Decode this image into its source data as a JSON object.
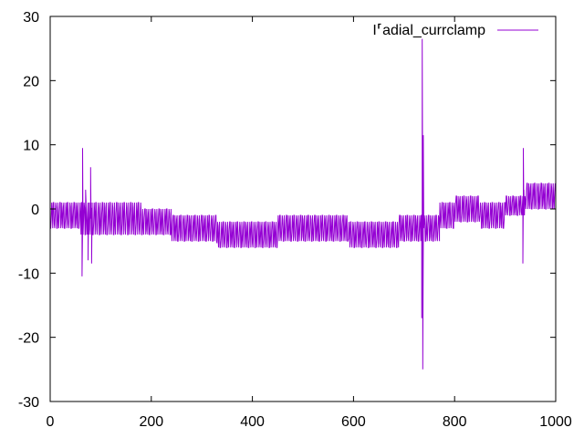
{
  "chart_data": {
    "type": "line",
    "title": "",
    "xlabel": "",
    "ylabel": "",
    "xlim": [
      0,
      1000
    ],
    "ylim": [
      -30,
      30
    ],
    "xticks": [
      0,
      200,
      400,
      600,
      800,
      1000
    ],
    "yticks": [
      -30,
      -20,
      -10,
      0,
      10,
      20,
      30
    ],
    "xtick_labels": [
      "0",
      "200",
      "400",
      "600",
      "800",
      "1000"
    ],
    "ytick_labels": [
      "-30",
      "-20",
      "-10",
      "0",
      "10",
      "20",
      "30"
    ],
    "grid": false,
    "legend_position": "top-right",
    "series": [
      {
        "name": "I⸢adial_currclamp",
        "color": "#9400d3",
        "segments": [
          {
            "x0": 0,
            "x1": 60,
            "low": -3,
            "high": 1
          },
          {
            "x0": 60,
            "x1": 100,
            "low": -4,
            "high": 1
          },
          {
            "x0": 100,
            "x1": 180,
            "low": -4,
            "high": 1
          },
          {
            "x0": 180,
            "x1": 240,
            "low": -4,
            "high": 0
          },
          {
            "x0": 240,
            "x1": 330,
            "low": -5,
            "high": -1
          },
          {
            "x0": 330,
            "x1": 450,
            "low": -6,
            "high": -2
          },
          {
            "x0": 450,
            "x1": 590,
            "low": -5,
            "high": -1
          },
          {
            "x0": 590,
            "x1": 690,
            "low": -6,
            "high": -2
          },
          {
            "x0": 690,
            "x1": 735,
            "low": -5,
            "high": -1
          },
          {
            "x0": 735,
            "x1": 770,
            "low": -5,
            "high": -1
          },
          {
            "x0": 770,
            "x1": 800,
            "low": -3,
            "high": 1
          },
          {
            "x0": 800,
            "x1": 850,
            "low": -2,
            "high": 2
          },
          {
            "x0": 850,
            "x1": 900,
            "low": -3,
            "high": 1
          },
          {
            "x0": 900,
            "x1": 940,
            "low": -1,
            "high": 2
          },
          {
            "x0": 940,
            "x1": 1000,
            "low": 0,
            "high": 4
          }
        ],
        "spikes": [
          {
            "x": 63,
            "y": -10.5
          },
          {
            "x": 64,
            "y": 9.5
          },
          {
            "x": 70,
            "y": 3
          },
          {
            "x": 75,
            "y": -8
          },
          {
            "x": 80,
            "y": 6.5
          },
          {
            "x": 82,
            "y": -8.5
          },
          {
            "x": 85,
            "y": -4
          },
          {
            "x": 735,
            "y": -17
          },
          {
            "x": 736,
            "y": 26.5
          },
          {
            "x": 737,
            "y": -25
          },
          {
            "x": 738,
            "y": 11.5
          },
          {
            "x": 739,
            "y": -3
          },
          {
            "x": 935,
            "y": -8.5
          },
          {
            "x": 936,
            "y": 9.5
          },
          {
            "x": 937,
            "y": 3
          }
        ]
      }
    ]
  }
}
